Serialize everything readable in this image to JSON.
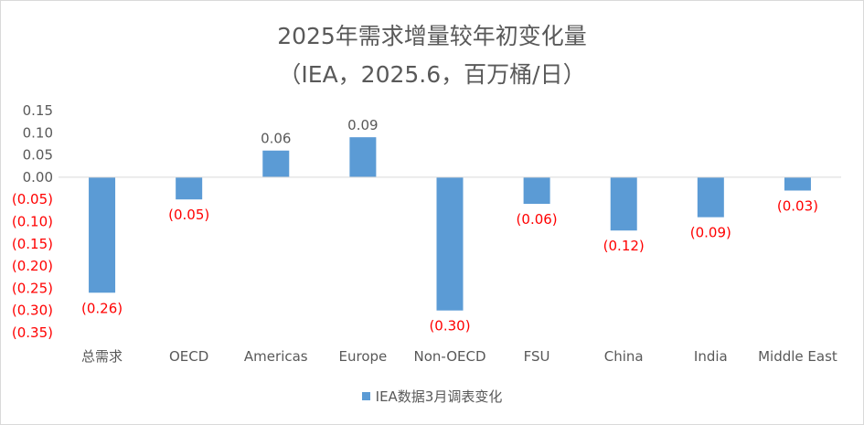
{
  "chart_data": {
    "type": "bar",
    "title": "2025年需求增量较年初变化量",
    "subtitle": "（IEA，2025.6，百万桶/日）",
    "categories": [
      "总需求",
      "OECD",
      "Americas",
      "Europe",
      "Non-OECD",
      "FSU",
      "China",
      "India",
      "Middle East"
    ],
    "series": [
      {
        "name": "IEA数据3月调表变化",
        "values": [
          -0.26,
          -0.05,
          0.06,
          0.09,
          -0.3,
          -0.06,
          -0.12,
          -0.09,
          -0.03
        ],
        "data_labels": [
          "(0.26)",
          "(0.05)",
          "0.06",
          "0.09",
          "(0.30)",
          "(0.06)",
          "(0.12)",
          "(0.09)",
          "(0.03)"
        ]
      }
    ],
    "y_ticks": [
      0.15,
      0.1,
      0.05,
      0.0,
      -0.05,
      -0.1,
      -0.15,
      -0.2,
      -0.25,
      -0.3,
      -0.35
    ],
    "y_tick_labels": [
      "0.15",
      "0.10",
      "0.05",
      "0.00",
      "(0.05)",
      "(0.10)",
      "(0.15)",
      "(0.20)",
      "(0.25)",
      "(0.30)",
      "(0.35)"
    ],
    "ylim": [
      -0.35,
      0.15
    ],
    "xlabel": "",
    "ylabel": "",
    "grid": false,
    "legend_position": "bottom",
    "colors": {
      "bar": "#5b9bd5",
      "negative_text": "#ff0000",
      "text": "#595959",
      "axis": "#d9d9d9"
    }
  }
}
